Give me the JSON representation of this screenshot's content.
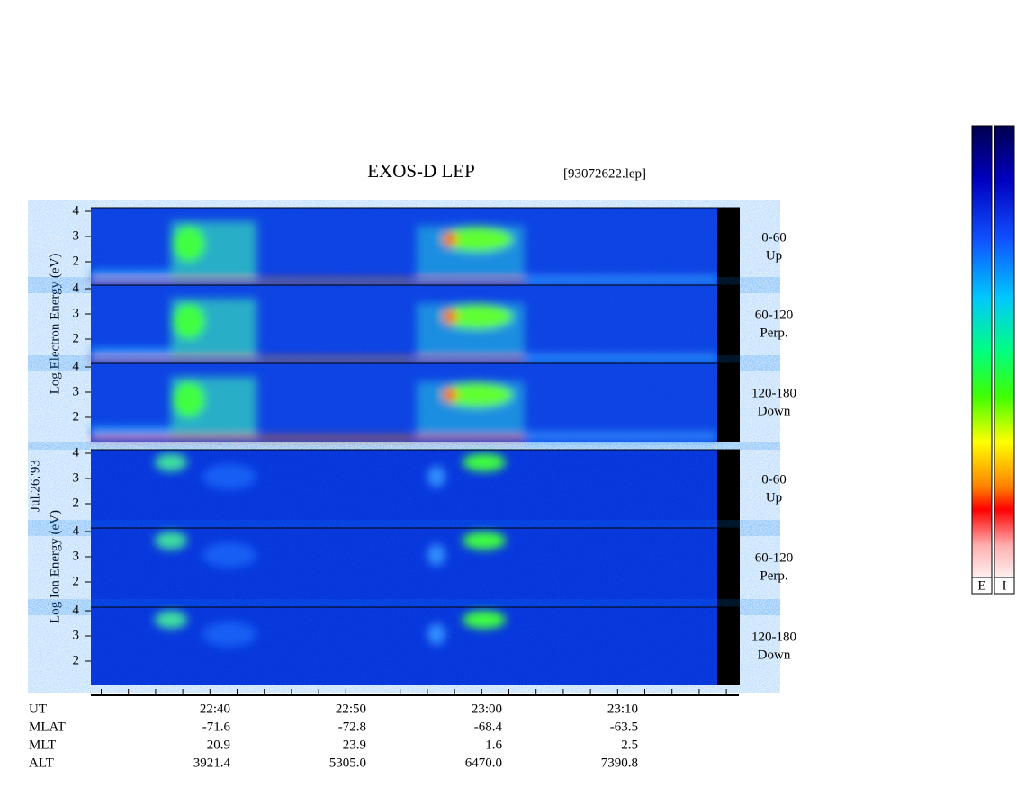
{
  "header": {
    "title": "EXOS-D LEP",
    "file": "[93072622.lep]"
  },
  "date": "Jul.26,'93",
  "electron_axis_label": "Log   Electron   Energy (eV)",
  "ion_axis_label": "Log    Ion   Energy (eV)",
  "energy_ticks": [
    "4",
    "3",
    "2"
  ],
  "panels": [
    {
      "range": "0-60",
      "direction": "Up"
    },
    {
      "range": "60-120",
      "direction": "Perp."
    },
    {
      "range": "120-180",
      "direction": "Down"
    }
  ],
  "orbit_table": [
    {
      "label": "UT",
      "values": [
        "22:40",
        "22:50",
        "23:00",
        "23:10"
      ]
    },
    {
      "label": "MLAT",
      "values": [
        "-71.6",
        "-72.8",
        "-68.4",
        "-63.5"
      ]
    },
    {
      "label": "MLT",
      "values": [
        "20.9",
        "23.9",
        "1.6",
        "2.5"
      ]
    },
    {
      "label": "ALT",
      "values": [
        "3921.4",
        "5305.0",
        "6470.0",
        "7390.8"
      ]
    }
  ],
  "colorbars": [
    "E",
    "I"
  ]
}
